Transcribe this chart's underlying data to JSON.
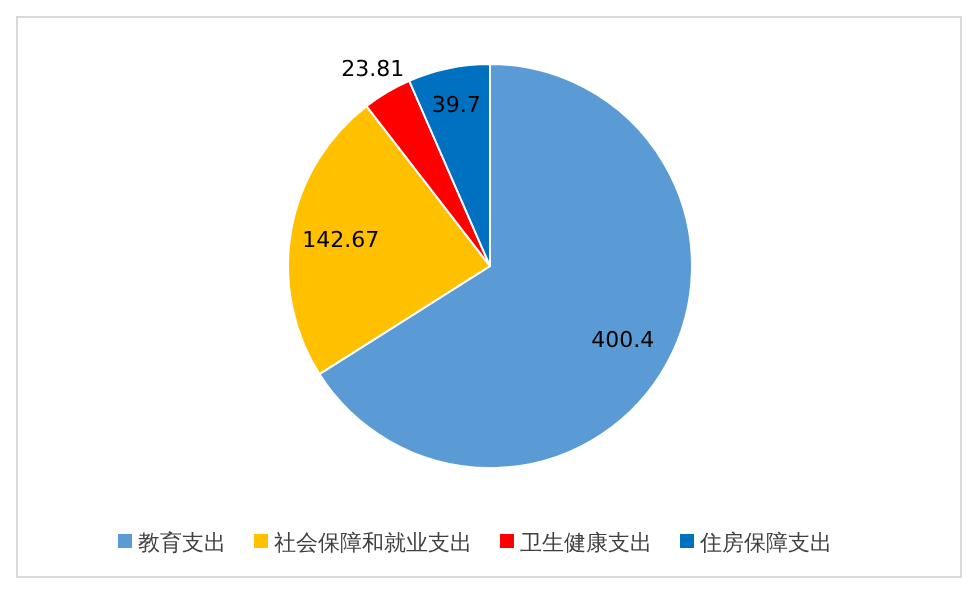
{
  "chart_data": {
    "type": "pie",
    "categories": [
      "教育支出",
      "社会保障和就业支出",
      "卫生健康支出",
      "住房保障支出"
    ],
    "values": [
      400.4,
      142.67,
      23.81,
      39.7
    ],
    "colors": [
      "#5b9bd5",
      "#ffc000",
      "#ff0000",
      "#0070c0"
    ],
    "data_labels": true,
    "legend": "bottom"
  }
}
